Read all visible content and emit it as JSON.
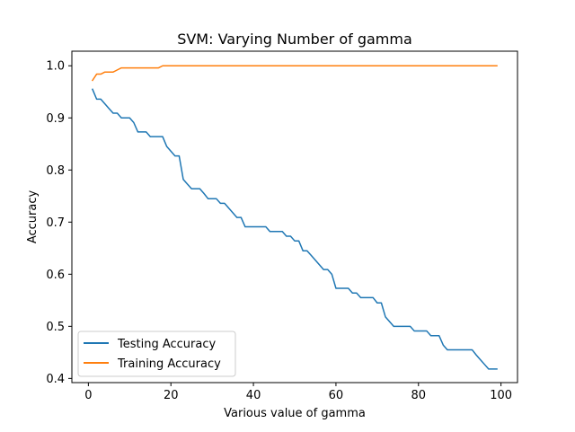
{
  "chart_data": {
    "type": "line",
    "title": "SVM: Varying Number of gamma",
    "xlabel": "Various value of gamma",
    "ylabel": "Accuracy",
    "xlim": [
      -4,
      104
    ],
    "ylim": [
      0.392,
      1.028
    ],
    "grid": false,
    "legend_location": "lower-left",
    "xticks": [
      0,
      20,
      40,
      60,
      80,
      100
    ],
    "yticks": [
      0.4,
      0.5,
      0.6,
      0.7,
      0.8,
      0.9,
      1.0
    ],
    "x": [
      1,
      2,
      3,
      4,
      5,
      6,
      7,
      8,
      9,
      10,
      11,
      12,
      13,
      14,
      15,
      16,
      17,
      18,
      19,
      20,
      21,
      22,
      23,
      24,
      25,
      26,
      27,
      28,
      29,
      30,
      31,
      32,
      33,
      34,
      35,
      36,
      37,
      38,
      39,
      40,
      41,
      42,
      43,
      44,
      45,
      46,
      47,
      48,
      49,
      50,
      51,
      52,
      53,
      54,
      55,
      56,
      57,
      58,
      59,
      60,
      61,
      62,
      63,
      64,
      65,
      66,
      67,
      68,
      69,
      70,
      71,
      72,
      73,
      74,
      75,
      76,
      77,
      78,
      79,
      80,
      81,
      82,
      83,
      84,
      85,
      86,
      87,
      88,
      89,
      90,
      91,
      92,
      93,
      94,
      95,
      96,
      97,
      98,
      99
    ],
    "series": [
      {
        "name": "Testing Accuracy",
        "color": "#1f77b4",
        "values": [
          0.955,
          0.936,
          0.936,
          0.927,
          0.918,
          0.909,
          0.909,
          0.9,
          0.9,
          0.9,
          0.891,
          0.873,
          0.873,
          0.873,
          0.864,
          0.864,
          0.864,
          0.864,
          0.845,
          0.836,
          0.827,
          0.827,
          0.782,
          0.773,
          0.764,
          0.764,
          0.764,
          0.755,
          0.745,
          0.745,
          0.745,
          0.736,
          0.736,
          0.727,
          0.718,
          0.709,
          0.709,
          0.691,
          0.691,
          0.691,
          0.691,
          0.691,
          0.691,
          0.682,
          0.682,
          0.682,
          0.682,
          0.673,
          0.673,
          0.664,
          0.664,
          0.645,
          0.645,
          0.636,
          0.627,
          0.618,
          0.609,
          0.609,
          0.6,
          0.573,
          0.573,
          0.573,
          0.573,
          0.564,
          0.564,
          0.555,
          0.555,
          0.555,
          0.555,
          0.545,
          0.545,
          0.518,
          0.509,
          0.5,
          0.5,
          0.5,
          0.5,
          0.5,
          0.491,
          0.491,
          0.491,
          0.491,
          0.482,
          0.482,
          0.482,
          0.464,
          0.455,
          0.455,
          0.455,
          0.455,
          0.455,
          0.455,
          0.455,
          0.445,
          0.436,
          0.427,
          0.418,
          0.418,
          0.418
        ]
      },
      {
        "name": "Training Accuracy",
        "color": "#ff7f0e",
        "values": [
          0.972,
          0.984,
          0.984,
          0.988,
          0.988,
          0.988,
          0.992,
          0.996,
          0.996,
          0.996,
          0.996,
          0.996,
          0.996,
          0.996,
          0.996,
          0.996,
          0.996,
          1.0,
          1.0,
          1.0,
          1.0,
          1.0,
          1.0,
          1.0,
          1.0,
          1.0,
          1.0,
          1.0,
          1.0,
          1.0,
          1.0,
          1.0,
          1.0,
          1.0,
          1.0,
          1.0,
          1.0,
          1.0,
          1.0,
          1.0,
          1.0,
          1.0,
          1.0,
          1.0,
          1.0,
          1.0,
          1.0,
          1.0,
          1.0,
          1.0,
          1.0,
          1.0,
          1.0,
          1.0,
          1.0,
          1.0,
          1.0,
          1.0,
          1.0,
          1.0,
          1.0,
          1.0,
          1.0,
          1.0,
          1.0,
          1.0,
          1.0,
          1.0,
          1.0,
          1.0,
          1.0,
          1.0,
          1.0,
          1.0,
          1.0,
          1.0,
          1.0,
          1.0,
          1.0,
          1.0,
          1.0,
          1.0,
          1.0,
          1.0,
          1.0,
          1.0,
          1.0,
          1.0,
          1.0,
          1.0,
          1.0,
          1.0,
          1.0,
          1.0,
          1.0,
          1.0,
          1.0,
          1.0,
          1.0
        ]
      }
    ]
  }
}
